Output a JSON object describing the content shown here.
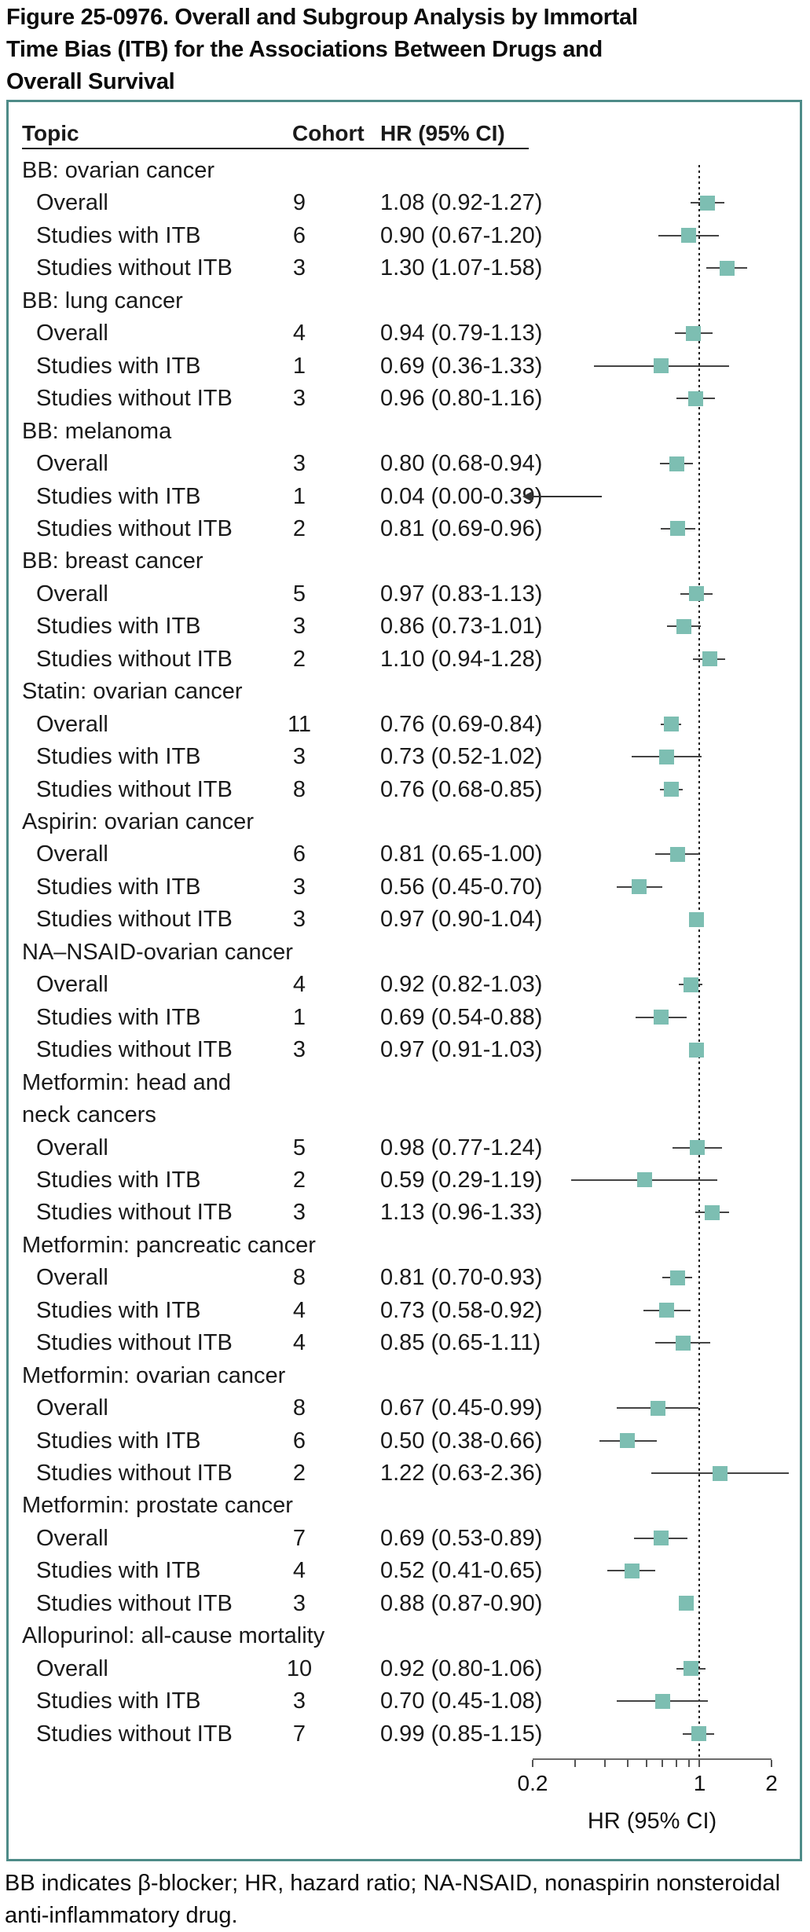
{
  "title": "Figure 25-0976. Overall and Subgroup Analysis by Immortal\nTime Bias (ITB) for the Associations Between Drugs and\nOverall Survival",
  "footnote": "BB indicates β-blocker; HR, hazard ratio; NA-NSAID, nonaspirin nonsteroidal\nanti-inflammatory drug.",
  "table": {
    "headers": {
      "topic": "Topic",
      "cohort": "Cohort",
      "hr": "HR (95% CI)"
    }
  },
  "axis": {
    "label": "HR (95% CI)",
    "scale": "log",
    "min": 0.2,
    "max": 2,
    "major_ticks": [
      {
        "v": 0.2,
        "label": "0.2"
      },
      {
        "v": 1,
        "label": "1"
      },
      {
        "v": 2,
        "label": "2"
      }
    ],
    "minor_ticks": [
      0.3,
      0.4,
      0.5,
      0.6,
      0.7,
      0.8,
      0.9
    ],
    "reference_line": 1
  },
  "colors": {
    "marker": "#7DBEB2",
    "panel_border": "#4E8B88",
    "ci_line": "#444444",
    "reference_dots": "#1a1a1a",
    "axis_line": "#6b6b6b",
    "text": "#1a1a1a"
  },
  "chart_data": {
    "type": "forest_plot",
    "x_axis": {
      "scale": "log",
      "min": 0.2,
      "max": 2,
      "ticks": [
        0.2,
        1,
        2
      ],
      "label": "HR (95% CI)"
    },
    "groups": [
      {
        "label": "BB: ovarian cancer",
        "rows": [
          {
            "label": "Overall",
            "cohort": "9",
            "hr_text": "1.08 (0.92-1.27)",
            "est": 1.08,
            "lo": 0.92,
            "hi": 1.27
          },
          {
            "label": "Studies with ITB",
            "cohort": "6",
            "hr_text": "0.90 (0.67-1.20)",
            "est": 0.9,
            "lo": 0.67,
            "hi": 1.2
          },
          {
            "label": "Studies without ITB",
            "cohort": "3",
            "hr_text": "1.30 (1.07-1.58)",
            "est": 1.3,
            "lo": 1.07,
            "hi": 1.58
          }
        ]
      },
      {
        "label": "BB: lung cancer",
        "rows": [
          {
            "label": "Overall",
            "cohort": "4",
            "hr_text": "0.94 (0.79-1.13)",
            "est": 0.94,
            "lo": 0.79,
            "hi": 1.13
          },
          {
            "label": "Studies with ITB",
            "cohort": "1",
            "hr_text": "0.69 (0.36-1.33)",
            "est": 0.69,
            "lo": 0.36,
            "hi": 1.33
          },
          {
            "label": "Studies without ITB",
            "cohort": "3",
            "hr_text": "0.96 (0.80-1.16)",
            "est": 0.96,
            "lo": 0.8,
            "hi": 1.16
          }
        ]
      },
      {
        "label": "BB: melanoma",
        "rows": [
          {
            "label": "Overall",
            "cohort": "3",
            "hr_text": "0.80 (0.68-0.94)",
            "est": 0.8,
            "lo": 0.68,
            "hi": 0.94
          },
          {
            "label": "Studies with ITB",
            "cohort": "1",
            "hr_text": "0.04 (0.00-0.39)",
            "est": 0.04,
            "lo": 0.0,
            "hi": 0.39,
            "offscale_left": true
          },
          {
            "label": "Studies without ITB",
            "cohort": "2",
            "hr_text": "0.81 (0.69-0.96)",
            "est": 0.81,
            "lo": 0.69,
            "hi": 0.96
          }
        ]
      },
      {
        "label": "BB: breast cancer",
        "rows": [
          {
            "label": "Overall",
            "cohort": "5",
            "hr_text": "0.97 (0.83-1.13)",
            "est": 0.97,
            "lo": 0.83,
            "hi": 1.13
          },
          {
            "label": "Studies with ITB",
            "cohort": "3",
            "hr_text": "0.86 (0.73-1.01)",
            "est": 0.86,
            "lo": 0.73,
            "hi": 1.01
          },
          {
            "label": "Studies without ITB",
            "cohort": "2",
            "hr_text": "1.10 (0.94-1.28)",
            "est": 1.1,
            "lo": 0.94,
            "hi": 1.28
          }
        ]
      },
      {
        "label": "Statin: ovarian cancer",
        "rows": [
          {
            "label": "Overall",
            "cohort": "11",
            "hr_text": "0.76 (0.69-0.84)",
            "est": 0.76,
            "lo": 0.69,
            "hi": 0.84
          },
          {
            "label": "Studies with ITB",
            "cohort": "3",
            "hr_text": "0.73 (0.52-1.02)",
            "est": 0.73,
            "lo": 0.52,
            "hi": 1.02
          },
          {
            "label": "Studies without ITB",
            "cohort": "8",
            "hr_text": "0.76 (0.68-0.85)",
            "est": 0.76,
            "lo": 0.68,
            "hi": 0.85
          }
        ]
      },
      {
        "label": "Aspirin: ovarian cancer",
        "rows": [
          {
            "label": "Overall",
            "cohort": "6",
            "hr_text": "0.81 (0.65-1.00)",
            "est": 0.81,
            "lo": 0.65,
            "hi": 1.0
          },
          {
            "label": "Studies with ITB",
            "cohort": "3",
            "hr_text": "0.56 (0.45-0.70)",
            "est": 0.56,
            "lo": 0.45,
            "hi": 0.7
          },
          {
            "label": "Studies without ITB",
            "cohort": "3",
            "hr_text": "0.97 (0.90-1.04)",
            "est": 0.97,
            "lo": 0.9,
            "hi": 1.04
          }
        ]
      },
      {
        "label": "NA–NSAID-ovarian cancer",
        "rows": [
          {
            "label": "Overall",
            "cohort": "4",
            "hr_text": "0.92 (0.82-1.03)",
            "est": 0.92,
            "lo": 0.82,
            "hi": 1.03
          },
          {
            "label": "Studies with ITB",
            "cohort": "1",
            "hr_text": "0.69 (0.54-0.88)",
            "est": 0.69,
            "lo": 0.54,
            "hi": 0.88
          },
          {
            "label": "Studies without ITB",
            "cohort": "3",
            "hr_text": "0.97 (0.91-1.03)",
            "est": 0.97,
            "lo": 0.91,
            "hi": 1.03
          }
        ]
      },
      {
        "label": "Metformin: head and\nneck cancers",
        "rows": [
          {
            "label": "Overall",
            "cohort": "5",
            "hr_text": "0.98 (0.77-1.24)",
            "est": 0.98,
            "lo": 0.77,
            "hi": 1.24
          },
          {
            "label": "Studies with ITB",
            "cohort": "2",
            "hr_text": "0.59 (0.29-1.19)",
            "est": 0.59,
            "lo": 0.29,
            "hi": 1.19
          },
          {
            "label": "Studies without ITB",
            "cohort": "3",
            "hr_text": "1.13 (0.96-1.33)",
            "est": 1.13,
            "lo": 0.96,
            "hi": 1.33
          }
        ]
      },
      {
        "label": "Metformin: pancreatic cancer",
        "rows": [
          {
            "label": "Overall",
            "cohort": "8",
            "hr_text": "0.81 (0.70-0.93)",
            "est": 0.81,
            "lo": 0.7,
            "hi": 0.93
          },
          {
            "label": "Studies with ITB",
            "cohort": "4",
            "hr_text": "0.73 (0.58-0.92)",
            "est": 0.73,
            "lo": 0.58,
            "hi": 0.92
          },
          {
            "label": "Studies without ITB",
            "cohort": "4",
            "hr_text": "0.85 (0.65-1.11)",
            "est": 0.85,
            "lo": 0.65,
            "hi": 1.11
          }
        ]
      },
      {
        "label": "Metformin: ovarian cancer",
        "rows": [
          {
            "label": "Overall",
            "cohort": "8",
            "hr_text": "0.67 (0.45-0.99)",
            "est": 0.67,
            "lo": 0.45,
            "hi": 0.99
          },
          {
            "label": "Studies with ITB",
            "cohort": "6",
            "hr_text": "0.50 (0.38-0.66)",
            "est": 0.5,
            "lo": 0.38,
            "hi": 0.66
          },
          {
            "label": "Studies without ITB",
            "cohort": "2",
            "hr_text": "1.22 (0.63-2.36)",
            "est": 1.22,
            "lo": 0.63,
            "hi": 2.36
          }
        ]
      },
      {
        "label": "Metformin: prostate cancer",
        "rows": [
          {
            "label": "Overall",
            "cohort": "7",
            "hr_text": "0.69 (0.53-0.89)",
            "est": 0.69,
            "lo": 0.53,
            "hi": 0.89
          },
          {
            "label": "Studies with ITB",
            "cohort": "4",
            "hr_text": "0.52 (0.41-0.65)",
            "est": 0.52,
            "lo": 0.41,
            "hi": 0.65
          },
          {
            "label": "Studies without ITB",
            "cohort": "3",
            "hr_text": "0.88 (0.87-0.90)",
            "est": 0.88,
            "lo": 0.87,
            "hi": 0.9
          }
        ]
      },
      {
        "label": "Allopurinol: all-cause mortality",
        "rows": [
          {
            "label": "Overall",
            "cohort": "10",
            "hr_text": "0.92 (0.80-1.06)",
            "est": 0.92,
            "lo": 0.8,
            "hi": 1.06
          },
          {
            "label": "Studies with ITB",
            "cohort": "3",
            "hr_text": "0.70 (0.45-1.08)",
            "est": 0.7,
            "lo": 0.45,
            "hi": 1.08
          },
          {
            "label": "Studies without ITB",
            "cohort": "7",
            "hr_text": "0.99 (0.85-1.15)",
            "est": 0.99,
            "lo": 0.85,
            "hi": 1.15
          }
        ]
      }
    ]
  }
}
